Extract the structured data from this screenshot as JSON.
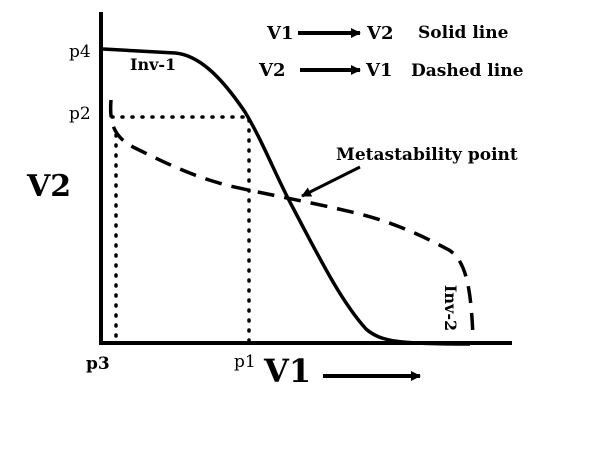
{
  "legend": {
    "solid": {
      "from": "V1",
      "to": "V2",
      "text": "Solid line"
    },
    "dashed": {
      "from": "V2",
      "to": "V1",
      "text": "Dashed line"
    }
  },
  "axes": {
    "x_label": "V1",
    "y_label": "V2"
  },
  "ticks": {
    "p1": "p1",
    "p2": "p2",
    "p3": "p3",
    "p4": "p4"
  },
  "curves": {
    "inv1": "Inv-1",
    "inv2": "Inv-2"
  },
  "annotation": "Metastability point",
  "colors": {
    "ink": "#000000",
    "background": "#ffffff"
  }
}
